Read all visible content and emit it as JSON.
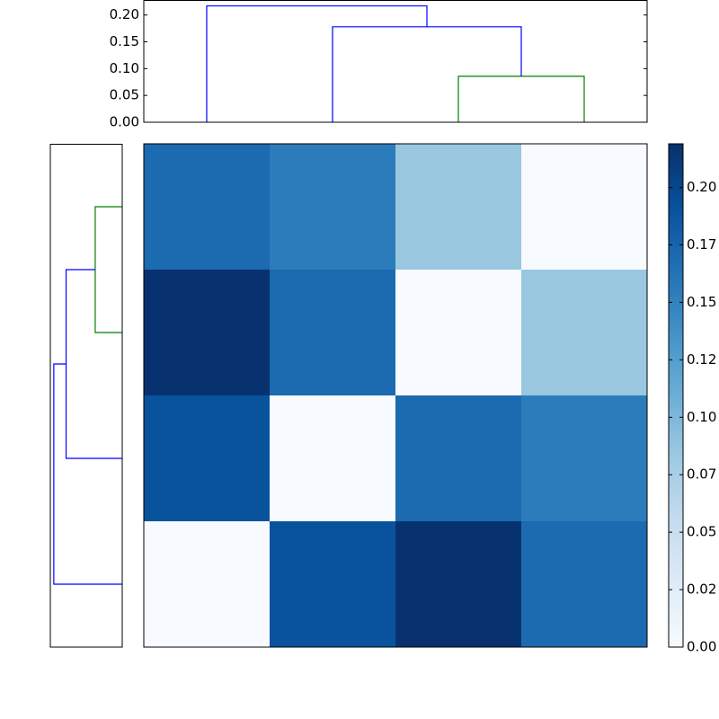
{
  "chart_data": [
    {
      "type": "dendrogram",
      "orientation": "top",
      "ylim": [
        0,
        0.228
      ],
      "xlim": [
        0,
        40
      ],
      "yticks": [
        {
          "value": 0,
          "label": "0.00"
        },
        {
          "value": 0.05,
          "label": "0.05"
        },
        {
          "value": 0.1,
          "label": "0.10"
        },
        {
          "value": 0.15,
          "label": "0.15"
        },
        {
          "value": 0.2,
          "label": "0.20"
        }
      ],
      "links": [
        {
          "icoord": [
            25,
            25,
            35,
            35
          ],
          "dcoord": [
            0,
            0.0857,
            0.0857,
            0
          ],
          "color": "#008000"
        },
        {
          "icoord": [
            15,
            15,
            30,
            30
          ],
          "dcoord": [
            0,
            0.178,
            0.178,
            0.0857
          ],
          "color": "#0000ff"
        },
        {
          "icoord": [
            5,
            5,
            22.5,
            22.5
          ],
          "dcoord": [
            0,
            0.217,
            0.217,
            0.178
          ],
          "color": "#0000ff"
        }
      ]
    },
    {
      "type": "dendrogram",
      "orientation": "left",
      "xlim": [
        0.228,
        0
      ],
      "ylim": [
        0,
        40
      ],
      "links": [
        {
          "icoord": [
            25,
            25,
            35,
            35
          ],
          "dcoord": [
            0,
            0.0857,
            0.0857,
            0
          ],
          "color": "#008000"
        },
        {
          "icoord": [
            15,
            15,
            30,
            30
          ],
          "dcoord": [
            0,
            0.178,
            0.178,
            0.0857
          ],
          "color": "#0000ff"
        },
        {
          "icoord": [
            5,
            5,
            22.5,
            22.5
          ],
          "dcoord": [
            0,
            0.217,
            0.217,
            0.178
          ],
          "color": "#0000ff"
        }
      ]
    },
    {
      "type": "heatmap",
      "matrix": [
        [
          0.17,
          0.155,
          0.085,
          0
        ],
        [
          0.217,
          0.17,
          0,
          0.085
        ],
        [
          0.19,
          0,
          0.17,
          0.155
        ],
        [
          0,
          0.19,
          0.217,
          0.17
        ]
      ],
      "clim": [
        0,
        0.219
      ],
      "colormap": [
        "#f7fbff",
        "#deebf7",
        "#c6dbef",
        "#9ecae1",
        "#6baed6",
        "#4292c6",
        "#2171b5",
        "#08519c",
        "#08306b"
      ],
      "colorbar_ticks": [
        {
          "value": 0,
          "label": "0.00"
        },
        {
          "value": 0.025,
          "label": "0.02"
        },
        {
          "value": 0.05,
          "label": "0.05"
        },
        {
          "value": 0.075,
          "label": "0.07"
        },
        {
          "value": 0.1,
          "label": "0.10"
        },
        {
          "value": 0.125,
          "label": "0.12"
        },
        {
          "value": 0.15,
          "label": "0.15"
        },
        {
          "value": 0.175,
          "label": "0.17"
        },
        {
          "value": 0.2,
          "label": "0.20"
        }
      ]
    }
  ]
}
